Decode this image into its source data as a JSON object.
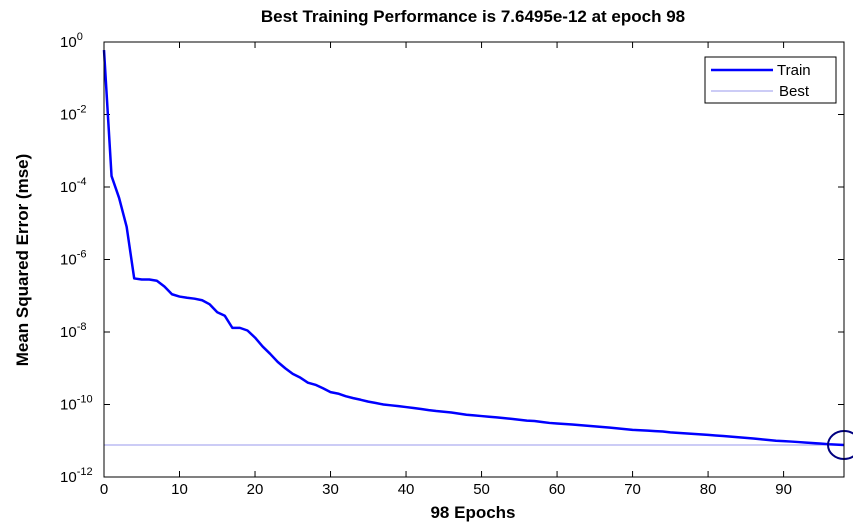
{
  "chart_data": {
    "type": "line",
    "title": "Best Training Performance is 7.6495e-12 at epoch 98",
    "xlabel": "98 Epochs",
    "ylabel": "Mean Squared Error  (mse)",
    "log_y": true,
    "legend": "upper right",
    "xlim": [
      0,
      98
    ],
    "xticks": [
      0,
      10,
      20,
      30,
      40,
      50,
      60,
      70,
      80,
      90
    ],
    "ylim": [
      1e-12,
      1
    ],
    "yticks": [
      {
        "value": 1,
        "label": "10^0"
      },
      {
        "value": 0.01,
        "label": "10^-2"
      },
      {
        "value": 0.0001,
        "label": "10^-4"
      },
      {
        "value": 1e-06,
        "label": "10^-6"
      },
      {
        "value": 1e-08,
        "label": "10^-8"
      },
      {
        "value": 1e-10,
        "label": "10^-10"
      },
      {
        "value": 1e-12,
        "label": "10^-12"
      }
    ],
    "x": [
      0,
      1,
      2,
      3,
      4,
      5,
      6,
      7,
      8,
      9,
      10,
      11,
      12,
      13,
      14,
      15,
      16,
      17,
      18,
      19,
      20,
      21,
      22,
      23,
      24,
      25,
      26,
      27,
      28,
      29,
      30,
      31,
      32,
      33,
      34,
      35,
      36,
      37,
      38,
      39,
      40,
      41,
      42,
      43,
      44,
      45,
      46,
      47,
      48,
      49,
      50,
      51,
      52,
      53,
      54,
      55,
      56,
      57,
      58,
      59,
      60,
      61,
      62,
      63,
      64,
      65,
      66,
      67,
      68,
      69,
      70,
      71,
      72,
      73,
      74,
      75,
      76,
      77,
      78,
      79,
      80,
      81,
      82,
      83,
      84,
      85,
      86,
      87,
      88,
      89,
      90,
      91,
      92,
      93,
      94,
      95,
      96,
      97,
      98
    ],
    "series": [
      {
        "name": "Train",
        "color": "#0000ff",
        "values": [
          0.6,
          0.0002,
          5e-05,
          8e-06,
          3e-07,
          2.8e-07,
          2.8e-07,
          2.6e-07,
          1.8e-07,
          1.1e-07,
          9.5e-08,
          8.8e-08,
          8.3e-08,
          7.5e-08,
          5.8e-08,
          3.5e-08,
          2.8e-08,
          1.3e-08,
          1.3e-08,
          1.1e-08,
          7e-09,
          4e-09,
          2.5e-09,
          1.5e-09,
          1e-09,
          7e-10,
          5.5e-10,
          4e-10,
          3.5e-10,
          2.8e-10,
          2.2e-10,
          2e-10,
          1.7e-10,
          1.5e-10,
          1.35e-10,
          1.2e-10,
          1.1e-10,
          1e-10,
          9.5e-11,
          9e-11,
          8.5e-11,
          8e-11,
          7.5e-11,
          7e-11,
          6.6e-11,
          6.3e-11,
          6e-11,
          5.6e-11,
          5.2e-11,
          5e-11,
          4.8e-11,
          4.6e-11,
          4.4e-11,
          4.2e-11,
          4e-11,
          3.8e-11,
          3.6e-11,
          3.5e-11,
          3.3e-11,
          3.1e-11,
          3e-11,
          2.9e-11,
          2.8e-11,
          2.7e-11,
          2.6e-11,
          2.5e-11,
          2.4e-11,
          2.3e-11,
          2.2e-11,
          2.1e-11,
          2e-11,
          1.95e-11,
          1.9e-11,
          1.85e-11,
          1.8e-11,
          1.7e-11,
          1.65e-11,
          1.6e-11,
          1.55e-11,
          1.5e-11,
          1.45e-11,
          1.4e-11,
          1.35e-11,
          1.3e-11,
          1.25e-11,
          1.2e-11,
          1.15e-11,
          1.1e-11,
          1.05e-11,
          1e-11,
          9.8e-12,
          9.5e-12,
          9.2e-12,
          8.9e-12,
          8.6e-12,
          8.3e-12,
          8e-12,
          7.8e-12,
          7.6495e-12
        ]
      }
    ],
    "best": {
      "name": "Best",
      "color": "#9999ee",
      "value": 7.6495e-12,
      "epoch": 98
    }
  }
}
